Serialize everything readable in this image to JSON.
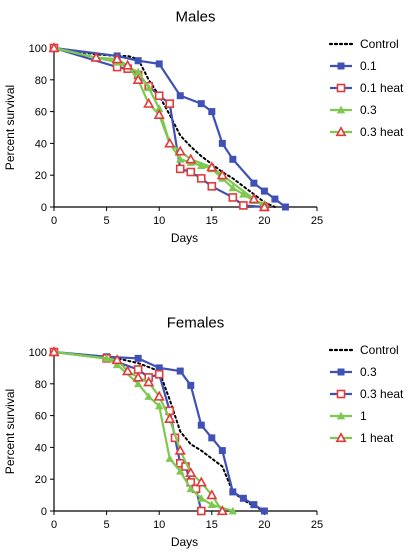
{
  "chart_data": [
    {
      "type": "line",
      "title": "Males",
      "xlabel": "Days",
      "ylabel": "Percent survival",
      "xlim": [
        0,
        25
      ],
      "ylim": [
        0,
        100
      ],
      "x_ticks": [
        0,
        5,
        10,
        15,
        20,
        25
      ],
      "y_ticks": [
        0,
        20,
        40,
        60,
        80,
        100
      ],
      "grid": false,
      "legend_position": "right",
      "series": [
        {
          "name": "Control",
          "color": "#000000",
          "style": "dotted",
          "marker": "none",
          "points": [
            [
              0,
              100
            ],
            [
              2,
              98
            ],
            [
              4,
              96
            ],
            [
              6,
              95
            ],
            [
              7,
              95
            ],
            [
              8,
              93
            ],
            [
              9,
              80
            ],
            [
              10,
              70
            ],
            [
              11,
              58
            ],
            [
              12,
              45
            ],
            [
              13,
              38
            ],
            [
              14,
              32
            ],
            [
              15,
              27
            ],
            [
              16,
              22
            ],
            [
              17,
              18
            ],
            [
              18,
              13
            ],
            [
              19,
              8
            ],
            [
              20,
              3
            ],
            [
              21,
              0
            ]
          ]
        },
        {
          "name": "0.1",
          "color": "#3f51b5",
          "style": "solid",
          "marker": "square",
          "points": [
            [
              0,
              100
            ],
            [
              6,
              95
            ],
            [
              8,
              92
            ],
            [
              10,
              90
            ],
            [
              12,
              70
            ],
            [
              14,
              65
            ],
            [
              15,
              60
            ],
            [
              16,
              40
            ],
            [
              17,
              30
            ],
            [
              19,
              15
            ],
            [
              20,
              10
            ],
            [
              21,
              5
            ],
            [
              22,
              0
            ]
          ]
        },
        {
          "name": "0.1 heat",
          "color": "#e03a3a",
          "line_color": "#3f51b5",
          "style": "solid",
          "marker": "open-square",
          "points": [
            [
              0,
              100
            ],
            [
              6,
              88
            ],
            [
              7,
              87
            ],
            [
              8,
              83
            ],
            [
              9,
              76
            ],
            [
              10,
              70
            ],
            [
              11,
              65
            ],
            [
              12,
              24
            ],
            [
              13,
              22
            ],
            [
              14,
              18
            ],
            [
              15,
              13
            ],
            [
              17,
              6
            ],
            [
              18,
              1
            ],
            [
              20,
              0
            ]
          ]
        },
        {
          "name": "0.3",
          "color": "#7ec850",
          "style": "solid",
          "marker": "triangle",
          "points": [
            [
              0,
              100
            ],
            [
              4,
              94
            ],
            [
              6,
              91
            ],
            [
              8,
              85
            ],
            [
              9,
              75
            ],
            [
              10,
              62
            ],
            [
              11,
              40
            ],
            [
              12,
              30
            ],
            [
              13,
              28
            ],
            [
              14,
              26
            ],
            [
              15,
              24
            ],
            [
              16,
              18
            ],
            [
              17,
              12
            ],
            [
              18,
              8
            ],
            [
              19,
              4
            ],
            [
              20,
              2
            ]
          ]
        },
        {
          "name": "0.3 heat",
          "color": "#e03a3a",
          "line_color": "#7ec850",
          "style": "solid",
          "marker": "open-triangle",
          "points": [
            [
              0,
              100
            ],
            [
              4,
              94
            ],
            [
              6,
              93
            ],
            [
              7,
              89
            ],
            [
              8,
              80
            ],
            [
              9,
              65
            ],
            [
              10,
              58
            ],
            [
              11,
              40
            ],
            [
              12,
              35
            ],
            [
              13,
              30
            ],
            [
              15,
              25
            ],
            [
              16,
              20
            ],
            [
              19,
              5
            ],
            [
              20,
              0
            ]
          ]
        }
      ]
    },
    {
      "type": "line",
      "title": "Females",
      "xlabel": "Days",
      "ylabel": "Percent survival",
      "xlim": [
        0,
        25
      ],
      "ylim": [
        0,
        100
      ],
      "x_ticks": [
        0,
        5,
        10,
        15,
        20,
        25
      ],
      "y_ticks": [
        0,
        20,
        40,
        60,
        80,
        100
      ],
      "grid": false,
      "legend_position": "right",
      "series": [
        {
          "name": "Control",
          "color": "#000000",
          "style": "dotted",
          "marker": "none",
          "points": [
            [
              0,
              100
            ],
            [
              3,
              98
            ],
            [
              6,
              96
            ],
            [
              8,
              93
            ],
            [
              10,
              88
            ],
            [
              11,
              70
            ],
            [
              12,
              50
            ],
            [
              13,
              42
            ],
            [
              14,
              38
            ],
            [
              15,
              33
            ],
            [
              16,
              28
            ],
            [
              17,
              12
            ],
            [
              18,
              7
            ],
            [
              19,
              3
            ],
            [
              20,
              0
            ]
          ]
        },
        {
          "name": "0.3",
          "color": "#3f51b5",
          "style": "solid",
          "marker": "square",
          "points": [
            [
              0,
              100
            ],
            [
              5,
              97
            ],
            [
              8,
              96
            ],
            [
              10,
              90
            ],
            [
              12,
              88
            ],
            [
              13,
              79
            ],
            [
              14,
              54
            ],
            [
              15,
              46
            ],
            [
              16,
              38
            ],
            [
              17,
              12
            ],
            [
              18,
              8
            ],
            [
              19,
              4
            ],
            [
              20,
              0
            ]
          ]
        },
        {
          "name": "0.3 heat",
          "color": "#e03a3a",
          "line_color": "#3f51b5",
          "style": "solid",
          "marker": "open-square",
          "points": [
            [
              0,
              100
            ],
            [
              5,
              96
            ],
            [
              8,
              89
            ],
            [
              9,
              84
            ],
            [
              10,
              86
            ],
            [
              11,
              63
            ],
            [
              11.5,
              46
            ],
            [
              12,
              30
            ],
            [
              12.5,
              28
            ],
            [
              13,
              18
            ],
            [
              13.5,
              14
            ],
            [
              14,
              0
            ]
          ]
        },
        {
          "name": "1",
          "color": "#7ec850",
          "style": "solid",
          "marker": "triangle",
          "points": [
            [
              0,
              100
            ],
            [
              5,
              96
            ],
            [
              6,
              92
            ],
            [
              8,
              80
            ],
            [
              9,
              72
            ],
            [
              10,
              66
            ],
            [
              11,
              33
            ],
            [
              12,
              25
            ],
            [
              13,
              14
            ],
            [
              14,
              8
            ],
            [
              15,
              4
            ],
            [
              17,
              0
            ]
          ]
        },
        {
          "name": "1 heat",
          "color": "#e03a3a",
          "line_color": "#7ec850",
          "style": "solid",
          "marker": "open-triangle",
          "points": [
            [
              0,
              100
            ],
            [
              6,
              95
            ],
            [
              7,
              88
            ],
            [
              8,
              84
            ],
            [
              9,
              81
            ],
            [
              10,
              72
            ],
            [
              11,
              58
            ],
            [
              12,
              38
            ],
            [
              13,
              24
            ],
            [
              14,
              18
            ],
            [
              15,
              10
            ],
            [
              16,
              0
            ]
          ]
        }
      ]
    }
  ]
}
